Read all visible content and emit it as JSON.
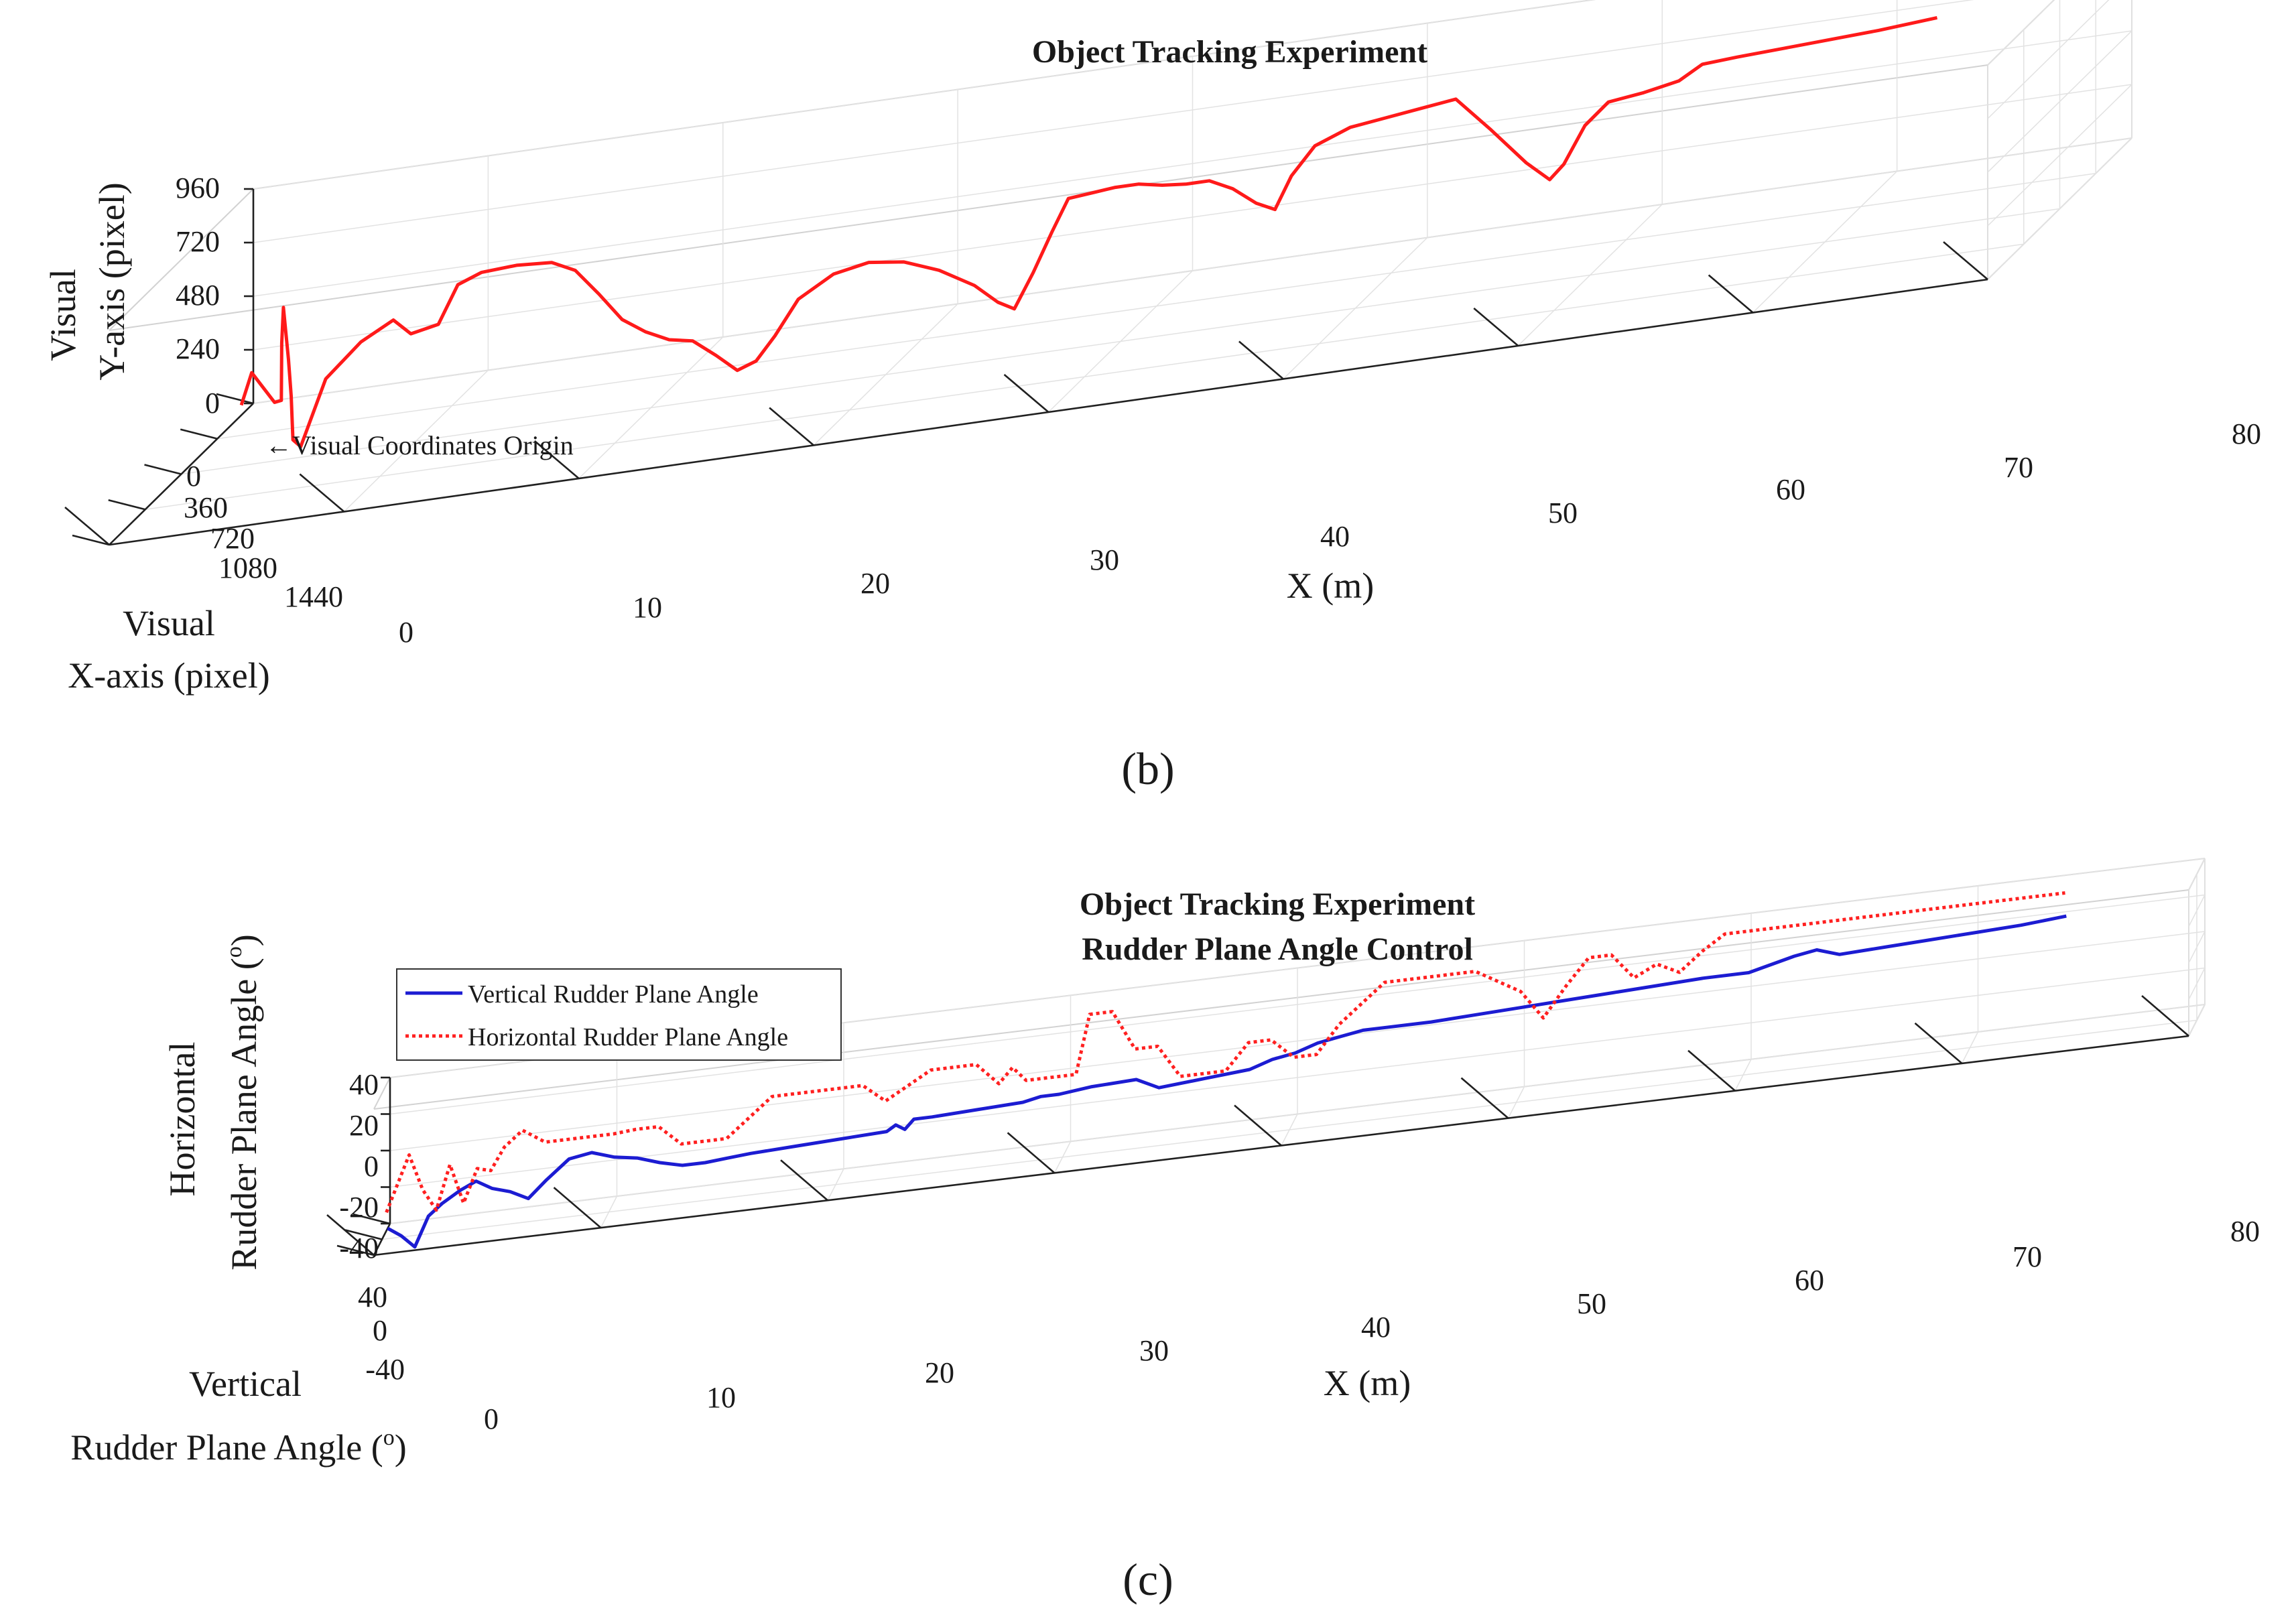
{
  "chart_data": [
    {
      "id": "b",
      "type": "line",
      "subtype": "3d-line",
      "title": "Object Tracking Experiment",
      "xlabel": "X (m)",
      "ylabel_lines": [
        "Visual",
        "X-axis (pixel)"
      ],
      "zlabel_lines": [
        "Visual",
        "Y-axis (pixel)"
      ],
      "xlim": [
        0,
        80
      ],
      "ylim": [
        0,
        1440
      ],
      "zlim": [
        0,
        960
      ],
      "x_ticks": [
        "0",
        "10",
        "20",
        "30",
        "40",
        "50",
        "60",
        "70",
        "80"
      ],
      "y_ticks": [
        "0",
        "360",
        "720",
        "1080",
        "1440"
      ],
      "z_ticks": [
        "0",
        "240",
        "480",
        "720",
        "960"
      ],
      "annotation": "←Visual Coordinates Origin",
      "caption": "(b)",
      "series": [
        {
          "name": "Tracked object trajectory",
          "color": "#ff1a1a",
          "style": "solid",
          "points": [
            [
              0.0,
              120,
              45
            ],
            [
              0.4,
              110,
              180
            ],
            [
              1.0,
              150,
              130
            ],
            [
              1.8,
              210,
              70
            ],
            [
              2.6,
              330,
              120
            ],
            [
              3.0,
              420,
              410
            ],
            [
              3.2,
              450,
              580
            ],
            [
              3.5,
              470,
              350
            ],
            [
              4.0,
              560,
              220
            ],
            [
              4.5,
              660,
              60
            ],
            [
              5.0,
              700,
              40
            ],
            [
              5.3,
              520,
              260
            ],
            [
              6.2,
              380,
              350
            ],
            [
              7.5,
              360,
              420
            ],
            [
              8.5,
              420,
              370
            ],
            [
              9.5,
              380,
              380
            ],
            [
              10.5,
              420,
              560
            ],
            [
              11.5,
              420,
              600
            ],
            [
              13.0,
              420,
              610
            ],
            [
              14.5,
              420,
              600
            ],
            [
              15.5,
              420,
              550
            ],
            [
              16.5,
              420,
              430
            ],
            [
              17.5,
              420,
              300
            ],
            [
              18.5,
              420,
              230
            ],
            [
              19.5,
              420,
              180
            ],
            [
              20.5,
              420,
              160
            ],
            [
              21.5,
              420,
              80
            ],
            [
              22.4,
              420,
              0
            ],
            [
              23.2,
              420,
              30
            ],
            [
              24.0,
              420,
              130
            ],
            [
              25.0,
              420,
              280
            ],
            [
              26.5,
              420,
              370
            ],
            [
              28.0,
              420,
              400
            ],
            [
              29.5,
              420,
              380
            ],
            [
              31.0,
              420,
              320
            ],
            [
              32.5,
              420,
              230
            ],
            [
              33.5,
              420,
              140
            ],
            [
              34.2,
              420,
              100
            ],
            [
              35.0,
              420,
              250
            ],
            [
              35.8,
              420,
              420
            ],
            [
              36.5,
              420,
              560
            ],
            [
              37.5,
              420,
              570
            ],
            [
              38.5,
              420,
              580
            ],
            [
              39.5,
              420,
              580
            ],
            [
              40.5,
              420,
              560
            ],
            [
              41.5,
              420,
              550
            ],
            [
              42.5,
              420,
              550
            ],
            [
              43.5,
              420,
              500
            ],
            [
              44.5,
              420,
              420
            ],
            [
              45.3,
              420,
              380
            ],
            [
              46.0,
              420,
              520
            ],
            [
              47.0,
              420,
              640
            ],
            [
              48.5,
              420,
              700
            ],
            [
              50.0,
              420,
              720
            ],
            [
              51.5,
              420,
              740
            ],
            [
              53.0,
              420,
              760
            ],
            [
              54.5,
              420,
              600
            ],
            [
              56.0,
              420,
              430
            ],
            [
              57.0,
              420,
              340
            ],
            [
              57.6,
              420,
              400
            ],
            [
              58.5,
              420,
              560
            ],
            [
              59.5,
              420,
              650
            ],
            [
              61.0,
              420,
              670
            ],
            [
              62.5,
              420,
              700
            ],
            [
              63.5,
              420,
              760
            ],
            [
              65.0,
              420,
              770
            ],
            [
              67.0,
              420,
              780
            ],
            [
              69.0,
              420,
              790
            ],
            [
              71.0,
              420,
              800
            ],
            [
              73.5,
              420,
              820
            ]
          ]
        }
      ]
    },
    {
      "id": "c",
      "type": "line",
      "subtype": "3d-line",
      "title_lines": [
        "Object Tracking Experiment",
        "Rudder Plane Angle Control"
      ],
      "xlabel": "X (m)",
      "ylabel_lines": [
        "Vertical",
        "Rudder Plane Angle (",
        ")"
      ],
      "zlabel_lines": [
        "Horizontal",
        "Rudder Plane Angle (",
        ")"
      ],
      "degree_mark": "o",
      "xlim": [
        0,
        80
      ],
      "ylim": [
        -40,
        40
      ],
      "zlim": [
        -40,
        40
      ],
      "x_ticks": [
        "0",
        "10",
        "20",
        "30",
        "40",
        "50",
        "60",
        "70",
        "80"
      ],
      "y_ticks": [
        "40",
        "0",
        "-40"
      ],
      "z_ticks": [
        "-40",
        "-20",
        "0",
        "20",
        "40"
      ],
      "caption": "(c)",
      "legend": [
        {
          "label": "Vertical Rudder Plane Angle",
          "color": "#1c1cd2",
          "style": "solid"
        },
        {
          "label": "Horizontal Rudder Plane Angle",
          "color": "#ff2020",
          "style": "dotted"
        }
      ],
      "series": [
        {
          "name": "Vertical Rudder Plane Angle",
          "color": "#1c1cd2",
          "style": "solid",
          "x": [
            0.0,
            0.6,
            1.2,
            1.8,
            2.4,
            3.2,
            3.9,
            4.6,
            5.4,
            6.2,
            7.0,
            8.0,
            9.0,
            10.0,
            11.0,
            12.0,
            13.0,
            14.0,
            15.0,
            16.0,
            18.0,
            20.0,
            22.0,
            22.4,
            22.8,
            23.2,
            24.0,
            26.0,
            28.0,
            28.8,
            29.6,
            31.0,
            33.0,
            34.0,
            36.0,
            38.0,
            39.0,
            40.0,
            41.0,
            42.0,
            43.0,
            44.0,
            46.0,
            48.0,
            50.0,
            52.0,
            54.0,
            56.0,
            58.0,
            60.0,
            62.0,
            63.0,
            64.0,
            66.0,
            68.0,
            70.0,
            72.0,
            74.0
          ],
          "y": [
            -28,
            -28,
            -28,
            -28,
            -28,
            -28,
            -28,
            -28,
            -28,
            -28,
            -28,
            -28,
            -28,
            -28,
            -28,
            -28,
            -28,
            -28,
            -28,
            -28,
            -28,
            -28,
            -28,
            -28,
            -28,
            -28,
            -28,
            -28,
            -28,
            -28,
            -28,
            -28,
            -28,
            -28,
            -28,
            -28,
            -28,
            -28,
            -28,
            -28,
            -28,
            -28,
            -28,
            -28,
            -28,
            -28,
            -28,
            -28,
            -28,
            -28,
            -28,
            -28,
            -28,
            -28,
            -28,
            -28,
            -28,
            -28
          ],
          "z": [
            -40,
            -45,
            -52,
            -36,
            -30,
            -24,
            -20,
            -25,
            -28,
            -33,
            -24,
            -14,
            -12,
            -16,
            -18,
            -22,
            -25,
            -25,
            -24,
            -23,
            -22,
            -21,
            -20,
            -17,
            -20,
            -15,
            -15,
            -14,
            -13,
            -11,
            -11,
            -9,
            -8,
            -14,
            -12,
            -10,
            -6,
            -4,
            0,
            2,
            4,
            4,
            4,
            5,
            6,
            7,
            8,
            9,
            10,
            10,
            16,
            18,
            14,
            15,
            16,
            17,
            18,
            20
          ]
        },
        {
          "name": "Horizontal Rudder Plane Angle",
          "color": "#ff2020",
          "style": "dotted",
          "x": [
            0.0,
            0.5,
            1.0,
            1.6,
            2.2,
            2.8,
            3.4,
            4.0,
            4.6,
            5.2,
            6.0,
            7.0,
            8.0,
            9.0,
            10.0,
            11.0,
            12.0,
            13.0,
            14.0,
            15.0,
            17.0,
            19.0,
            21.0,
            22.0,
            24.0,
            26.0,
            27.0,
            27.6,
            28.2,
            29.0,
            29.8,
            30.4,
            31.0,
            32.0,
            33.0,
            34.0,
            35.0,
            37.0,
            38.0,
            39.0,
            40.0,
            41.0,
            42.0,
            44.0,
            46.0,
            48.0,
            50.0,
            51.0,
            52.0,
            53.0,
            54.0,
            55.0,
            56.0,
            57.0,
            58.0,
            59.0,
            60.0,
            61.0,
            62.0,
            63.0,
            66.0,
            70.0,
            74.0
          ],
          "y": [
            -22,
            -22,
            -22,
            -22,
            -22,
            -22,
            -22,
            -22,
            -22,
            -22,
            -22,
            -22,
            -22,
            -22,
            -22,
            -22,
            -22,
            -22,
            -22,
            -22,
            -22,
            -22,
            -22,
            -22,
            -22,
            -22,
            -22,
            -22,
            -22,
            -22,
            -22,
            -22,
            -22,
            -22,
            -22,
            -22,
            -22,
            -22,
            -22,
            -22,
            -22,
            -22,
            -22,
            -22,
            -22,
            -22,
            -22,
            -22,
            -22,
            -22,
            -22,
            -22,
            -22,
            -22,
            -22,
            -22,
            -22,
            -22,
            -22,
            -22,
            -22,
            -22,
            -22
          ],
          "z": [
            -30,
            -15,
            0,
            -20,
            -32,
            -8,
            -30,
            -12,
            -14,
            -2,
            6,
            -2,
            -2,
            -2,
            -2,
            -1,
            -1,
            -12,
            -12,
            -12,
            8,
            8,
            8,
            -2,
            12,
            12,
            0,
            8,
            0,
            0,
            0,
            0,
            32,
            32,
            10,
            10,
            -8,
            -8,
            6,
            6,
            -5,
            -5,
            10,
            30,
            30,
            30,
            16,
            0,
            16,
            30,
            30,
            16,
            22,
            16,
            26,
            34,
            34,
            34,
            34,
            34,
            34,
            34,
            34
          ]
        }
      ]
    }
  ]
}
